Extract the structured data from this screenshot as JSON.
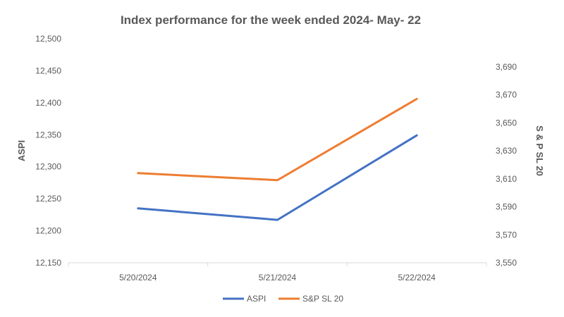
{
  "chart_data": {
    "type": "line",
    "title": "Index performance for the week ended 2024- May- 22",
    "categories": [
      "5/20/2024",
      "5/21/2024",
      "5/22/2024"
    ],
    "xlabel": "",
    "series": [
      {
        "name": "ASPI",
        "axis": "left",
        "color": "#4472C4",
        "values": [
          12235,
          12217,
          12349
        ]
      },
      {
        "name": "S&P SL 20",
        "axis": "right",
        "color": "#ED7D31",
        "values": [
          3614,
          3609,
          3667
        ]
      }
    ],
    "y_left": {
      "label": "ASPI",
      "ylim": [
        12150,
        12500
      ],
      "ticks": [
        12150,
        12200,
        12250,
        12300,
        12350,
        12400,
        12450,
        12500
      ],
      "tick_labels": [
        "12,150",
        "12,200",
        "12,250",
        "12,300",
        "12,350",
        "12,400",
        "12,450",
        "12,500"
      ]
    },
    "y_right": {
      "label": "S & P SL 20",
      "ylim": [
        3550,
        3710
      ],
      "ticks": [
        3550,
        3570,
        3590,
        3610,
        3630,
        3650,
        3670,
        3690
      ],
      "tick_labels": [
        "3,550",
        "3,570",
        "3,590",
        "3,610",
        "3,630",
        "3,650",
        "3,670",
        "3,690"
      ]
    },
    "grid": false,
    "legend": "bottom"
  }
}
